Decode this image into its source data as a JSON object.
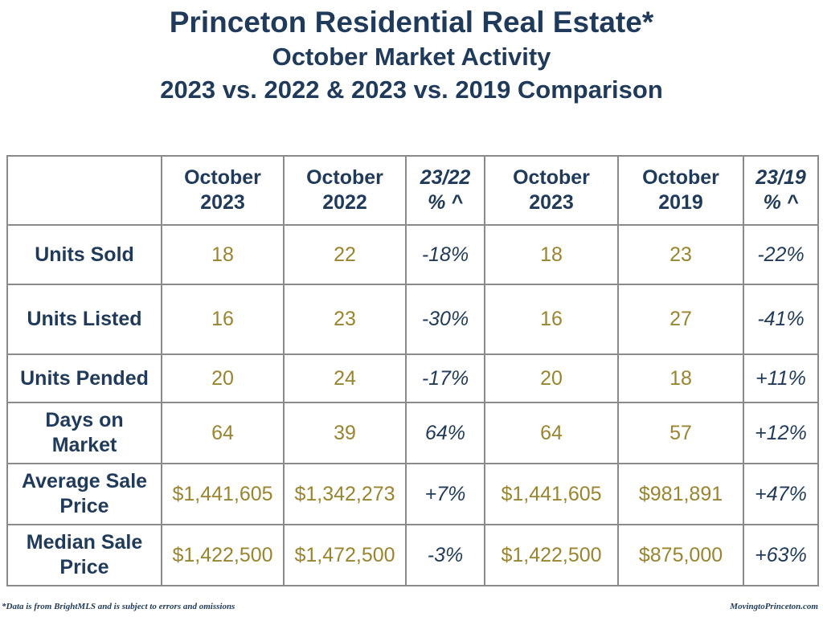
{
  "title": {
    "line1": "Princeton Residential Real Estate*",
    "line2": "October Market Activity",
    "line3": "2023 vs. 2022 & 2023 vs. 2019 Comparison"
  },
  "table": {
    "headers": [
      {
        "line1": "",
        "line2": ""
      },
      {
        "line1": "October",
        "line2": "2023"
      },
      {
        "line1": "October",
        "line2": "2022"
      },
      {
        "line1": "23/22",
        "line2": "% ^"
      },
      {
        "line1": "October",
        "line2": "2023"
      },
      {
        "line1": "October",
        "line2": "2019"
      },
      {
        "line1": "23/19",
        "line2": "% ^"
      }
    ],
    "rows": [
      {
        "label1": "Units Sold",
        "label2": "",
        "cells": [
          "18",
          "22",
          "-18%",
          "18",
          "23",
          "-22%"
        ]
      },
      {
        "label1": "Units Listed",
        "label2": "",
        "cells": [
          "16",
          "23",
          "-30%",
          "16",
          "27",
          "-41%"
        ]
      },
      {
        "label1": "Units Pended",
        "label2": "",
        "cells": [
          "20",
          "24",
          "-17%",
          "20",
          "18",
          "+11%"
        ]
      },
      {
        "label1": "Days on",
        "label2": "Market",
        "cells": [
          "64",
          "39",
          "64%",
          "64",
          "57",
          "+12%"
        ]
      },
      {
        "label1": "Average Sale",
        "label2": "Price",
        "cells": [
          "$1,441,605",
          "$1,342,273",
          "+7%",
          "$1,441,605",
          "$981,891",
          "+47%"
        ]
      },
      {
        "label1": "Median Sale",
        "label2": "Price",
        "cells": [
          "$1,422,500",
          "$1,472,500",
          "-3%",
          "$1,422,500",
          "$875,000",
          "+63%"
        ]
      }
    ]
  },
  "footer": {
    "disclaimer": "*Data is from BrightMLS and is subject to errors and omissions",
    "site": "MovingtoPrinceton.com"
  },
  "colors": {
    "title": "#1f3a5a",
    "values": "#9a8430",
    "border": "#8a8a8a"
  }
}
